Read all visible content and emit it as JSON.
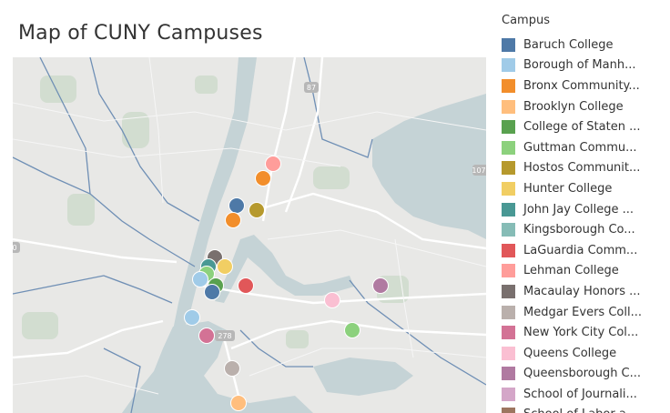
{
  "title": "Map of CUNY Campuses",
  "legend": {
    "title": "Campus",
    "items": [
      {
        "label": "Baruch College",
        "color": "#4e79a7"
      },
      {
        "label": "Borough of Manh...",
        "color": "#a0cbe8"
      },
      {
        "label": "Bronx Community...",
        "color": "#f28e2b"
      },
      {
        "label": "Brooklyn College",
        "color": "#ffbe7d"
      },
      {
        "label": "College of Staten ...",
        "color": "#59a14f"
      },
      {
        "label": "Guttman Commu...",
        "color": "#8cd17d"
      },
      {
        "label": "Hostos Communit...",
        "color": "#b6992d"
      },
      {
        "label": "Hunter College",
        "color": "#f1ce63"
      },
      {
        "label": "John Jay College ...",
        "color": "#499894"
      },
      {
        "label": "Kingsborough Co...",
        "color": "#86bcb6"
      },
      {
        "label": "LaGuardia Comm...",
        "color": "#e15759"
      },
      {
        "label": "Lehman College",
        "color": "#ff9d9a"
      },
      {
        "label": "Macaulay Honors ...",
        "color": "#79706e"
      },
      {
        "label": "Medgar Evers Coll...",
        "color": "#bab0ac"
      },
      {
        "label": "New York City Col...",
        "color": "#d37295"
      },
      {
        "label": "Queens College",
        "color": "#fabfd2"
      },
      {
        "label": "Queensborough C...",
        "color": "#b07aa1"
      },
      {
        "label": "School of Journali...",
        "color": "#d4a6c8"
      },
      {
        "label": "School of Labor a...",
        "color": "#9d7660"
      }
    ]
  },
  "map": {
    "road_labels": [
      "87",
      "107",
      "278",
      "0"
    ],
    "markers": [
      {
        "campus": "Lehman College",
        "color": "#ff9d9a"
      },
      {
        "campus": "Bronx Community...",
        "color": "#f28e2b"
      },
      {
        "campus": "Baruch College",
        "color": "#4e79a7"
      },
      {
        "campus": "Hostos Communit...",
        "color": "#b6992d"
      },
      {
        "campus": "Bronx Community...",
        "color": "#f28e2b"
      },
      {
        "campus": "Macaulay Honors ...",
        "color": "#79706e"
      },
      {
        "campus": "John Jay College ...",
        "color": "#499894"
      },
      {
        "campus": "Hunter College",
        "color": "#f1ce63"
      },
      {
        "campus": "Guttman Commu...",
        "color": "#8cd17d"
      },
      {
        "campus": "Borough of Manh...",
        "color": "#a0cbe8"
      },
      {
        "campus": "College of Staten ...",
        "color": "#59a14f"
      },
      {
        "campus": "Baruch College",
        "color": "#4e79a7"
      },
      {
        "campus": "LaGuardia Comm...",
        "color": "#e15759"
      },
      {
        "campus": "Queens College",
        "color": "#fabfd2"
      },
      {
        "campus": "Queensborough C...",
        "color": "#b07aa1"
      },
      {
        "campus": "Borough of Manh...",
        "color": "#a0cbe8"
      },
      {
        "campus": "Guttman Commu...",
        "color": "#8cd17d"
      },
      {
        "campus": "New York City Col...",
        "color": "#d37295"
      },
      {
        "campus": "Medgar Evers Coll...",
        "color": "#bab0ac"
      },
      {
        "campus": "Brooklyn College",
        "color": "#ffbe7d"
      }
    ]
  }
}
